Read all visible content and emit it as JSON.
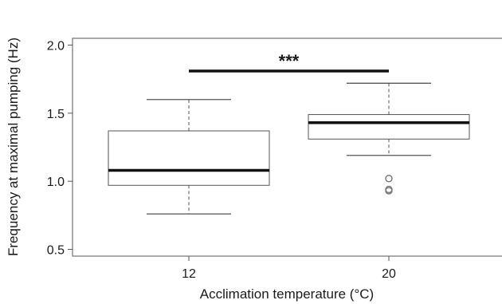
{
  "chart_data": {
    "type": "boxplot",
    "xlabel": "Acclimation temperature (°C)",
    "ylabel": "Frequency at maximal pumping (Hz)",
    "ylim": [
      0.45,
      2.05
    ],
    "yticks": [
      "0.5",
      "1.0",
      "1.5",
      "2.0"
    ],
    "ytick_values": [
      0.5,
      1.0,
      1.5,
      2.0
    ],
    "categories": [
      "12",
      "20"
    ],
    "boxes": [
      {
        "category": "12",
        "whisker_low": 0.76,
        "q1": 0.97,
        "median": 1.08,
        "q3": 1.37,
        "whisker_high": 1.6,
        "outliers": []
      },
      {
        "category": "20",
        "whisker_low": 1.19,
        "q1": 1.31,
        "median": 1.43,
        "q3": 1.49,
        "whisker_high": 1.72,
        "outliers": [
          0.93,
          0.94,
          1.02
        ]
      }
    ],
    "significance": {
      "label": "***",
      "y": 1.81
    },
    "grid": false,
    "colors": {
      "box_fill": "#ffffff",
      "box_line": "#555555",
      "median": "#111111",
      "bracket": "#111111",
      "outlier": "#777777"
    }
  }
}
